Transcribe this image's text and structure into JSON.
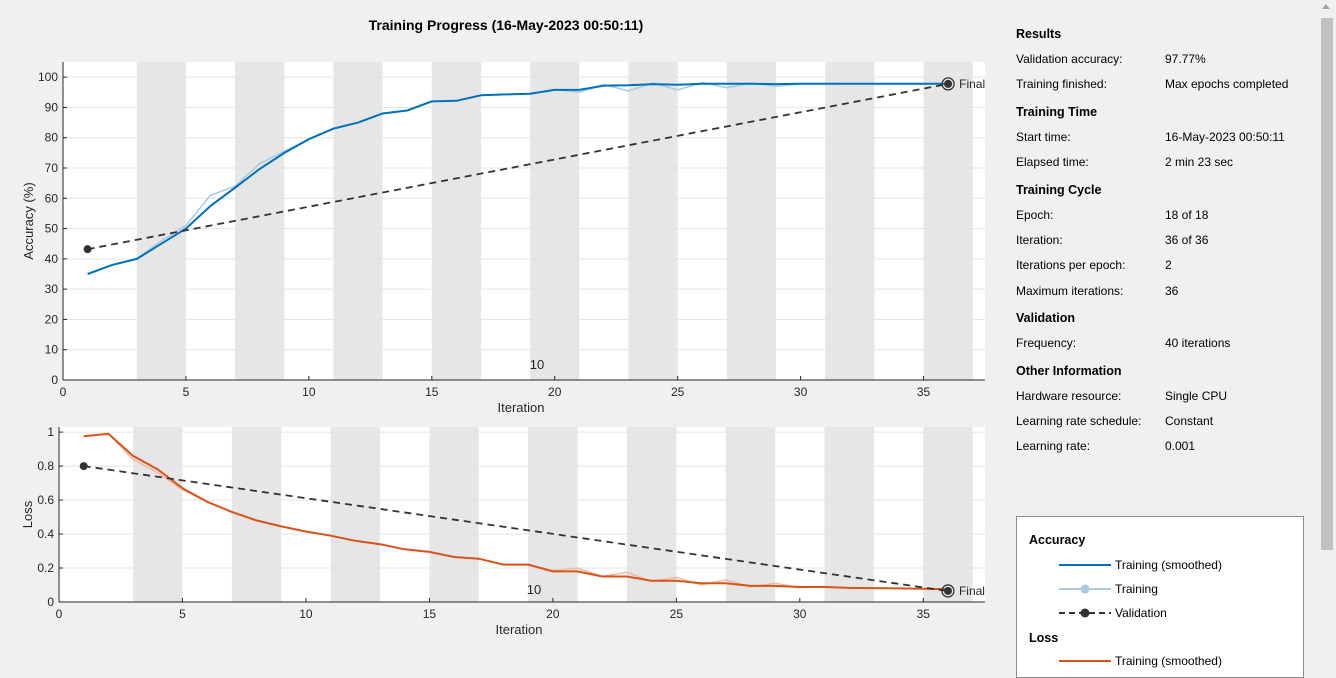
{
  "header": {
    "title": "Training Progress (16-May-2023 00:50:11)"
  },
  "colors": {
    "accuracy": "#0072bd",
    "accuracy_raw": "#a9c9e3",
    "loss": "#d95319",
    "loss_raw": "#f0b9a3",
    "validation": "#333333",
    "epoch_band": "#e6e6e6",
    "grid": "#e3e3e3"
  },
  "chart_data": [
    {
      "type": "line",
      "xlabel": "Iteration",
      "ylabel": "Accuracy (%)",
      "xlim": [
        0,
        37.5
      ],
      "ylim": [
        0,
        105
      ],
      "xticks": [
        0,
        5,
        10,
        15,
        20,
        25,
        30,
        35
      ],
      "yticks": [
        0,
        10,
        20,
        30,
        40,
        50,
        60,
        70,
        80,
        90,
        100
      ],
      "grid": true,
      "epoch_shading": "alternating epochs of 2 iterations",
      "annotation": "10",
      "final_label": "Final",
      "series": [
        {
          "name": "Training (smoothed)",
          "x": [
            1,
            2,
            3,
            4,
            5,
            6,
            7,
            8,
            9,
            10,
            11,
            12,
            13,
            14,
            15,
            16,
            17,
            18,
            19,
            20,
            21,
            22,
            23,
            24,
            25,
            26,
            27,
            28,
            29,
            30,
            31,
            32,
            33,
            34,
            35,
            36
          ],
          "values": [
            35,
            38,
            40,
            45,
            50,
            57.5,
            63.5,
            69.7,
            75,
            79.5,
            83,
            85,
            88,
            89,
            92,
            92.2,
            94,
            94.3,
            94.5,
            95.8,
            95.8,
            97.2,
            97.3,
            97.7,
            97.5,
            97.8,
            97.8,
            97.8,
            97.7,
            97.8,
            97.8,
            97.8,
            97.8,
            97.8,
            97.8,
            97.8
          ]
        },
        {
          "name": "Training",
          "x": [
            1,
            2,
            3,
            4,
            5,
            6,
            7,
            8,
            9,
            10,
            11,
            12,
            13,
            14,
            15,
            16,
            17,
            18,
            19,
            20,
            21,
            22,
            23,
            24,
            25,
            26,
            27,
            28,
            29,
            30,
            31,
            32,
            33,
            34,
            35,
            36
          ],
          "values": [
            35,
            38,
            40,
            46,
            51,
            61,
            64,
            71.5,
            75.5,
            79.5,
            83,
            85,
            88,
            89,
            92,
            92.2,
            94,
            94.3,
            94.5,
            96,
            95,
            97.5,
            95.5,
            98,
            95.8,
            98.2,
            96.5,
            98,
            97,
            97.8,
            97.9,
            97.8,
            97.8,
            97.8,
            97.8,
            97.8
          ]
        },
        {
          "name": "Validation",
          "x": [
            1,
            36
          ],
          "values": [
            43.2,
            97.77
          ]
        }
      ]
    },
    {
      "type": "line",
      "xlabel": "Iteration",
      "ylabel": "Loss",
      "xlim": [
        0,
        37.5
      ],
      "ylim": [
        0,
        1.03
      ],
      "xticks": [
        0,
        5,
        10,
        15,
        20,
        25,
        30,
        35
      ],
      "yticks": [
        0,
        0.2,
        0.4,
        0.6,
        0.8,
        1
      ],
      "ytick_labels": [
        "0",
        "0.2",
        "0.4",
        "0.6",
        "0.8",
        "1"
      ],
      "grid": true,
      "epoch_shading": "alternating epochs of 2 iterations",
      "annotation": "10",
      "final_label": "Final",
      "series": [
        {
          "name": "Training (smoothed)",
          "x": [
            1,
            2,
            3,
            4,
            5,
            6,
            7,
            8,
            9,
            10,
            11,
            12,
            13,
            14,
            15,
            16,
            17,
            18,
            19,
            20,
            21,
            22,
            23,
            24,
            25,
            26,
            27,
            28,
            29,
            30,
            31,
            32,
            33,
            34,
            35,
            36
          ],
          "values": [
            0.975,
            0.99,
            0.86,
            0.78,
            0.67,
            0.59,
            0.53,
            0.48,
            0.445,
            0.415,
            0.39,
            0.36,
            0.34,
            0.31,
            0.295,
            0.265,
            0.255,
            0.22,
            0.22,
            0.18,
            0.18,
            0.15,
            0.15,
            0.125,
            0.125,
            0.11,
            0.11,
            0.095,
            0.095,
            0.088,
            0.088,
            0.083,
            0.082,
            0.08,
            0.078,
            0.075
          ]
        },
        {
          "name": "Training",
          "x": [
            1,
            2,
            3,
            4,
            5,
            6,
            7,
            8,
            9,
            10,
            11,
            12,
            13,
            14,
            15,
            16,
            17,
            18,
            19,
            20,
            21,
            22,
            23,
            24,
            25,
            26,
            27,
            28,
            29,
            30,
            31,
            32,
            33,
            34,
            35,
            36
          ],
          "values": [
            0.975,
            0.99,
            0.84,
            0.76,
            0.66,
            0.59,
            0.53,
            0.48,
            0.445,
            0.415,
            0.39,
            0.36,
            0.34,
            0.31,
            0.295,
            0.265,
            0.255,
            0.22,
            0.22,
            0.185,
            0.2,
            0.15,
            0.175,
            0.12,
            0.145,
            0.1,
            0.13,
            0.09,
            0.11,
            0.085,
            0.09,
            0.083,
            0.082,
            0.08,
            0.078,
            0.075
          ]
        },
        {
          "name": "Validation",
          "x": [
            1,
            36
          ],
          "values": [
            0.8,
            0.065
          ]
        }
      ]
    }
  ],
  "info": {
    "results_title": "Results",
    "val_acc_label": "Validation accuracy:",
    "val_acc_value": "97.77%",
    "finished_label": "Training finished:",
    "finished_value": "Max epochs completed",
    "time_title": "Training Time",
    "start_label": "Start time:",
    "start_value": "16-May-2023 00:50:11",
    "elapsed_label": "Elapsed time:",
    "elapsed_value": "2 min 23 sec",
    "cycle_title": "Training Cycle",
    "epoch_label": "Epoch:",
    "epoch_value": "18 of 18",
    "iteration_label": "Iteration:",
    "iteration_value": "36 of 36",
    "ipe_label": "Iterations per epoch:",
    "ipe_value": "2",
    "maxiter_label": "Maximum iterations:",
    "maxiter_value": "36",
    "validation_title": "Validation",
    "freq_label": "Frequency:",
    "freq_value": "40 iterations",
    "other_title": "Other Information",
    "hw_label": "Hardware resource:",
    "hw_value": "Single CPU",
    "lrs_label": "Learning rate schedule:",
    "lrs_value": "Constant",
    "lr_label": "Learning rate:",
    "lr_value": "0.001"
  },
  "legend": {
    "accuracy_title": "Accuracy",
    "acc_smoothed": "Training (smoothed)",
    "acc_training": "Training",
    "acc_validation": "Validation",
    "loss_title": "Loss",
    "loss_smoothed": "Training (smoothed)"
  }
}
